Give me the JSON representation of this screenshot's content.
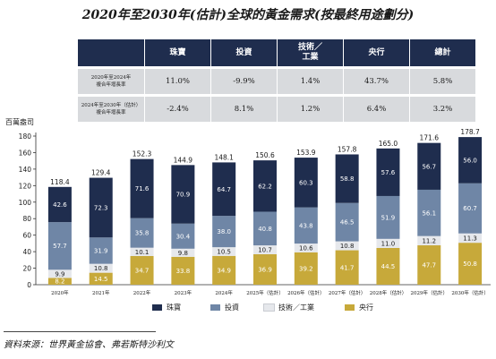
{
  "title": "2020年至2030年(估計)全球的黃金需求(按最終用途劃分)",
  "table": {
    "headers": [
      "",
      "珠寶",
      "投資",
      "技術／\n工業",
      "央行",
      "總計"
    ],
    "rows": [
      {
        "label": "2020年至2024年\n複合年增長率",
        "values": [
          "11.0%",
          "-9.9%",
          "1.4%",
          "43.7%",
          "5.8%"
        ]
      },
      {
        "label": "2024年至2030年（估計）\n複合年增長率",
        "values": [
          "-2.4%",
          "8.1%",
          "1.2%",
          "6.4%",
          "3.2%"
        ]
      }
    ]
  },
  "chart_data": {
    "type": "bar",
    "stacked": true,
    "ylabel": "百萬盎司",
    "ylim": [
      0,
      180
    ],
    "yticks": [
      0,
      20,
      40,
      60,
      80,
      100,
      120,
      140,
      160,
      180
    ],
    "grid": false,
    "legend_position": "bottom",
    "categories": [
      "2020年",
      "2021年",
      "2022年",
      "2023年",
      "2024年",
      "2025年（估計）",
      "2026年（估計）",
      "2027年（估計）",
      "2028年（估計）",
      "2029年（估計）",
      "2030年（估計）"
    ],
    "totals": [
      "118.4",
      "129.4",
      "152.3",
      "144.9",
      "148.1",
      "150.6",
      "153.9",
      "157.8",
      "165.0",
      "171.6",
      "178.7"
    ],
    "series": [
      {
        "name": "央行",
        "color": "#c7a93a",
        "label_color": "#ffffff",
        "values": [
          8.2,
          14.5,
          34.7,
          33.8,
          34.9,
          36.9,
          39.2,
          41.7,
          44.5,
          47.7,
          50.8
        ],
        "labels": [
          "8.2",
          "14.5",
          "34.7",
          "33.8",
          "34.9",
          "36.9",
          "39.2",
          "41.7",
          "44.5",
          "47.7",
          "50.8"
        ]
      },
      {
        "name": "技術／工業",
        "color": "#e6e8ec",
        "label_color": "#1a1a1a",
        "values": [
          9.9,
          10.8,
          10.1,
          9.8,
          10.5,
          10.7,
          10.6,
          10.8,
          11.0,
          11.2,
          11.3
        ],
        "labels": [
          "9.9",
          "10.8",
          "10.1",
          "9.8",
          "10.5",
          "10.7",
          "10.6",
          "10.8",
          "11.0",
          "11.2",
          "11.3"
        ]
      },
      {
        "name": "投資",
        "color": "#6f86a6",
        "label_color": "#ffffff",
        "values": [
          57.7,
          31.9,
          35.8,
          30.4,
          38.0,
          40.8,
          43.8,
          46.5,
          51.9,
          56.1,
          60.7
        ],
        "labels": [
          "57.7",
          "31.9",
          "35.8",
          "30.4",
          "38.0",
          "40.8",
          "43.8",
          "46.5",
          "51.9",
          "56.1",
          "60.7"
        ]
      },
      {
        "name": "珠寶",
        "color": "#1f2d4e",
        "label_color": "#ffffff",
        "values": [
          42.6,
          72.3,
          71.6,
          70.9,
          64.7,
          62.2,
          60.3,
          58.8,
          57.6,
          56.7,
          56.0
        ],
        "labels": [
          "42.6",
          "72.3",
          "71.6",
          "70.9",
          "64.7",
          "62.2",
          "60.3",
          "58.8",
          "57.6",
          "56.7",
          "56.0"
        ]
      }
    ]
  },
  "legend": [
    {
      "name": "珠寶",
      "color": "#1f2d4e"
    },
    {
      "name": "投資",
      "color": "#6f86a6"
    },
    {
      "name": "技術／工業",
      "color": "#e6e8ec"
    },
    {
      "name": "央行",
      "color": "#c7a93a"
    }
  ],
  "source": "資料來源：世界黃金協會、弗若斯特沙利文"
}
